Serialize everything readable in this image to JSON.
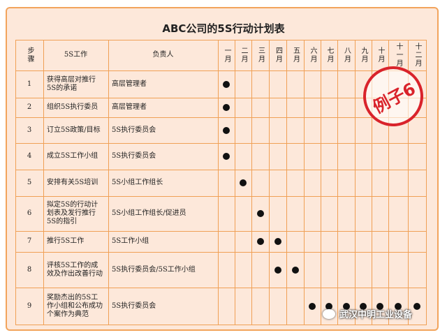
{
  "title": "ABC公司的5S行动计划表",
  "header": {
    "step": "步骤",
    "work": "5S工作",
    "owner": "负责人",
    "months": [
      "一月",
      "二月",
      "三月",
      "四月",
      "五月",
      "六月",
      "七月",
      "八月",
      "九月",
      "十月",
      "十一月",
      "十二月"
    ]
  },
  "rows": [
    {
      "step": "1",
      "work": "获得高层对推行5S的承诺",
      "owner": "高层管理者",
      "active_months": [
        1
      ]
    },
    {
      "step": "2",
      "work": "组织5S执行委员",
      "owner": "高层管理者",
      "active_months": [
        1
      ]
    },
    {
      "step": "3",
      "work": "订立5S政策/目标",
      "owner": "5S执行委员会",
      "active_months": [
        1
      ]
    },
    {
      "step": "4",
      "work": "成立5S工作小组",
      "owner": "5S执行委员会",
      "active_months": [
        1
      ]
    },
    {
      "step": "5",
      "work": "安排有关5S培训",
      "owner": "5S小组工作组长",
      "active_months": [
        2
      ]
    },
    {
      "step": "6",
      "work": "拟定5S的行动计划表及发行推行5S的指引",
      "owner": "5S小组工作组长/促进员",
      "active_months": [
        3
      ]
    },
    {
      "step": "7",
      "work": "推行5S工作",
      "owner": "5S工作小组",
      "active_months": [
        3,
        4
      ]
    },
    {
      "step": "8",
      "work": "评核5S工作的成效及作出改善行动",
      "owner": "5S执行委员会/5S工作小组",
      "active_months": [
        4,
        5
      ]
    },
    {
      "step": "9",
      "work": "奖励杰出的5S工作小组和公布成功个案作为典范",
      "owner": "5S执行委员会",
      "active_months": [
        6,
        7,
        8,
        9,
        10,
        11,
        12
      ]
    }
  ],
  "stamp": "例子6",
  "watermark": "武汉中明工业设备"
}
